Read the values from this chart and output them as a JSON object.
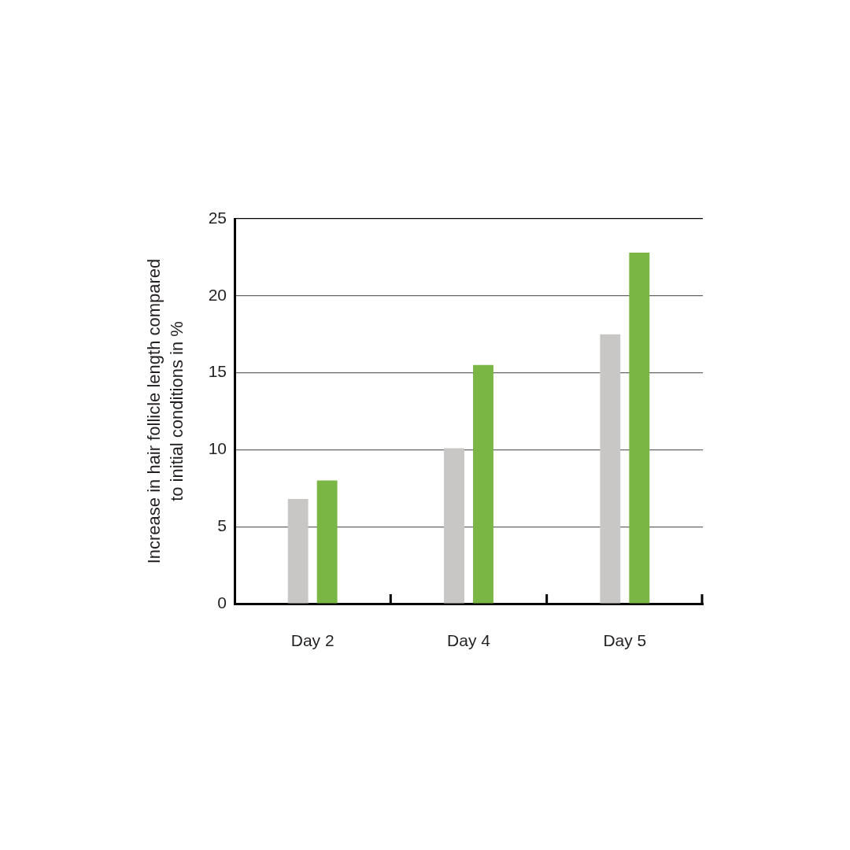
{
  "chart_data": {
    "type": "bar",
    "ylabel": "Increase in hair follicle length compared to initial conditions in %",
    "categories": [
      "Day 2",
      "Day 4",
      "Day 5"
    ],
    "series": [
      {
        "color": "#c8c7c5",
        "values": [
          6.8,
          10.1,
          17.5
        ]
      },
      {
        "color": "#7ab643",
        "values": [
          8.0,
          15.5,
          22.8
        ]
      }
    ],
    "ylim": [
      0,
      25
    ],
    "yticks": [
      0,
      5,
      10,
      15,
      20,
      25
    ],
    "grid": "y"
  }
}
